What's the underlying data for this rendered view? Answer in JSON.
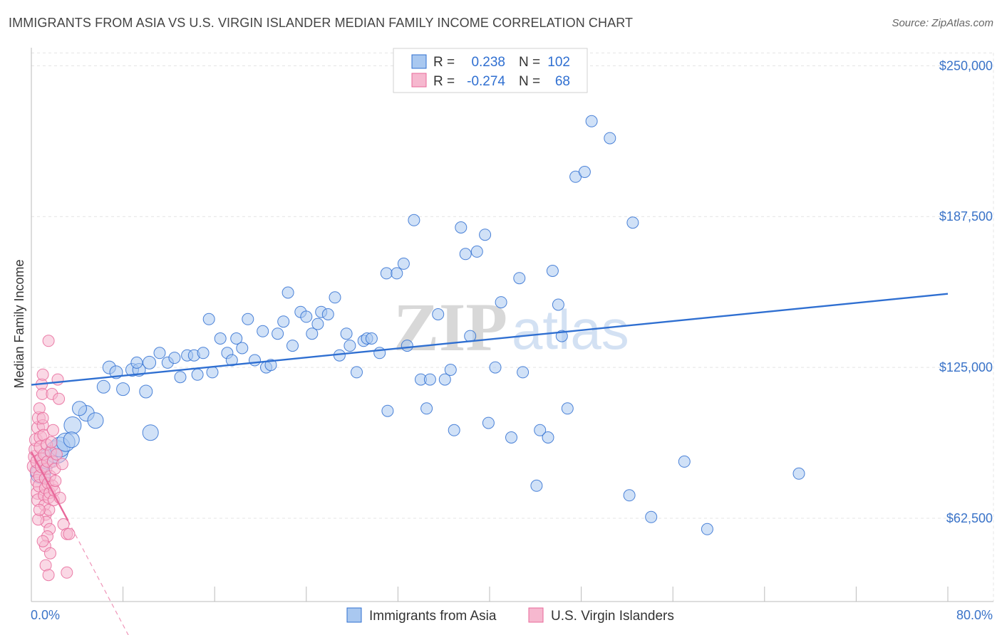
{
  "title": "IMMIGRANTS FROM ASIA VS U.S. VIRGIN ISLANDER MEDIAN FAMILY INCOME CORRELATION CHART",
  "source": "Source: ZipAtlas.com",
  "watermark": {
    "zip": "ZIP",
    "atlas": "atlas"
  },
  "colors": {
    "blue": "#2f6fd1",
    "blue_fill": "#a9c8f0",
    "pink": "#e8689a",
    "pink_fill": "#f6b8cf"
  },
  "legend": {
    "r_label": "R =",
    "n_label": "N =",
    "series": [
      {
        "name": "Immigrants from Asia",
        "r": "0.238",
        "n": "102"
      },
      {
        "name": "U.S. Virgin Islanders",
        "r": "-0.274",
        "n": "68"
      }
    ]
  },
  "chart_data": {
    "type": "scatter",
    "title": "IMMIGRANTS FROM ASIA VS U.S. VIRGIN ISLANDER MEDIAN FAMILY INCOME CORRELATION CHART",
    "xlabel": "",
    "ylabel": "Median Family Income",
    "xlim": [
      0,
      80
    ],
    "ylim": [
      28000,
      256000
    ],
    "x_tick_labels": [
      "0.0%",
      "80.0%"
    ],
    "y_ticks": [
      62500,
      125000,
      187500,
      250000
    ],
    "y_tick_labels": [
      "$62,500",
      "$125,000",
      "$187,500",
      "$250,000"
    ],
    "grid": true,
    "series": [
      {
        "name": "Immigrants from Asia",
        "color": "#2f6fd1",
        "trend": {
          "x": [
            0,
            80
          ],
          "y": [
            117800,
            155500
          ],
          "style": "solid"
        },
        "points": [
          [
            0.8,
            81000,
            14
          ],
          [
            1.4,
            87000,
            14
          ],
          [
            2.2,
            90000,
            16
          ],
          [
            2.5,
            92000,
            14
          ],
          [
            3.0,
            94000,
            13
          ],
          [
            3.6,
            101000,
            12
          ],
          [
            4.8,
            106000,
            11
          ],
          [
            5.6,
            103000,
            11
          ],
          [
            4.2,
            108000,
            10
          ],
          [
            6.3,
            117000,
            9
          ],
          [
            6.8,
            125000,
            9
          ],
          [
            7.4,
            123000,
            9
          ],
          [
            8.0,
            116000,
            9
          ],
          [
            8.8,
            124000,
            9
          ],
          [
            9.4,
            124000,
            9
          ],
          [
            10.0,
            115000,
            9
          ],
          [
            9.2,
            127000,
            8
          ],
          [
            10.3,
            127000,
            9
          ],
          [
            11.2,
            131000,
            8
          ],
          [
            11.9,
            127000,
            8
          ],
          [
            12.5,
            129000,
            8
          ],
          [
            13.0,
            121000,
            8
          ],
          [
            13.6,
            130000,
            8
          ],
          [
            14.2,
            130000,
            8
          ],
          [
            14.5,
            122000,
            8
          ],
          [
            15.0,
            131000,
            8
          ],
          [
            15.5,
            145000,
            8
          ],
          [
            15.8,
            123000,
            8
          ],
          [
            16.5,
            137000,
            8
          ],
          [
            17.1,
            131000,
            8
          ],
          [
            17.5,
            128000,
            8
          ],
          [
            17.9,
            137000,
            8
          ],
          [
            18.4,
            133000,
            8
          ],
          [
            18.9,
            145000,
            8
          ],
          [
            19.5,
            128000,
            8
          ],
          [
            20.2,
            140000,
            8
          ],
          [
            20.5,
            125000,
            8
          ],
          [
            20.9,
            126000,
            8
          ],
          [
            21.5,
            139000,
            8
          ],
          [
            22.0,
            144000,
            8
          ],
          [
            22.4,
            156000,
            8
          ],
          [
            22.8,
            134000,
            8
          ],
          [
            23.5,
            148000,
            8
          ],
          [
            24.0,
            146000,
            8
          ],
          [
            24.5,
            139000,
            8
          ],
          [
            25.0,
            143000,
            8
          ],
          [
            25.3,
            148000,
            8
          ],
          [
            25.9,
            147000,
            8
          ],
          [
            26.5,
            154000,
            8
          ],
          [
            26.9,
            130000,
            8
          ],
          [
            27.5,
            139000,
            8
          ],
          [
            27.8,
            134000,
            8
          ],
          [
            28.4,
            123000,
            8
          ],
          [
            29.0,
            136000,
            8
          ],
          [
            29.3,
            137000,
            8
          ],
          [
            29.7,
            137000,
            8
          ],
          [
            30.4,
            131000,
            8
          ],
          [
            31.1,
            107000,
            8
          ],
          [
            31.0,
            164000,
            8
          ],
          [
            31.9,
            164000,
            8
          ],
          [
            32.5,
            168000,
            8
          ],
          [
            32.8,
            134000,
            8
          ],
          [
            33.4,
            186000,
            8
          ],
          [
            34.0,
            120000,
            8
          ],
          [
            34.5,
            108000,
            8
          ],
          [
            34.8,
            120000,
            8
          ],
          [
            35.5,
            147000,
            8
          ],
          [
            36.1,
            120000,
            8
          ],
          [
            36.6,
            124000,
            8
          ],
          [
            36.9,
            99000,
            8
          ],
          [
            37.5,
            183000,
            8
          ],
          [
            37.9,
            172000,
            8
          ],
          [
            38.3,
            138000,
            8
          ],
          [
            38.9,
            173000,
            8
          ],
          [
            39.6,
            180000,
            8
          ],
          [
            39.9,
            102000,
            8
          ],
          [
            40.5,
            125000,
            8
          ],
          [
            41.0,
            152000,
            8
          ],
          [
            41.9,
            96000,
            8
          ],
          [
            42.6,
            162000,
            8
          ],
          [
            42.9,
            123000,
            8
          ],
          [
            44.1,
            76000,
            8
          ],
          [
            44.4,
            99000,
            8
          ],
          [
            45.1,
            96000,
            8
          ],
          [
            45.5,
            165000,
            8
          ],
          [
            46.0,
            151000,
            8
          ],
          [
            46.3,
            138000,
            8
          ],
          [
            46.8,
            108000,
            8
          ],
          [
            47.5,
            204000,
            8
          ],
          [
            48.3,
            206000,
            8
          ],
          [
            48.9,
            227000,
            8
          ],
          [
            50.5,
            220000,
            8
          ],
          [
            52.2,
            72000,
            8
          ],
          [
            52.5,
            185000,
            8
          ],
          [
            54.1,
            63000,
            8
          ],
          [
            57.0,
            86000,
            8
          ],
          [
            59.0,
            58000,
            8
          ],
          [
            67.0,
            81000,
            8
          ],
          [
            10.4,
            98000,
            11
          ],
          [
            3.5,
            95000,
            11
          ]
        ]
      },
      {
        "name": "U.S. Virgin Islanders",
        "color": "#e8689a",
        "trend": {
          "x": [
            0,
            3.2
          ],
          "y": [
            90000,
            61500
          ],
          "style": "solid",
          "extension": {
            "x": [
              3.2,
              9.7
            ],
            "y": [
              61500,
              3000
            ],
            "style": "dashed"
          }
        },
        "points": [
          [
            0.2,
            84000,
            9
          ],
          [
            0.3,
            88000,
            9
          ],
          [
            0.35,
            91000,
            9
          ],
          [
            0.4,
            95000,
            9
          ],
          [
            0.45,
            82000,
            9
          ],
          [
            0.5,
            86000,
            9
          ],
          [
            0.5,
            78000,
            9
          ],
          [
            0.55,
            73000,
            9
          ],
          [
            0.6,
            70000,
            9
          ],
          [
            0.6,
            100000,
            9
          ],
          [
            0.65,
            104000,
            9
          ],
          [
            0.7,
            108000,
            8
          ],
          [
            0.7,
            76000,
            9
          ],
          [
            0.75,
            80000,
            9
          ],
          [
            0.8,
            96000,
            9
          ],
          [
            0.8,
            92000,
            9
          ],
          [
            0.85,
            87000,
            9
          ],
          [
            0.9,
            84000,
            9
          ],
          [
            0.9,
            118000,
            8
          ],
          [
            0.95,
            114000,
            8
          ],
          [
            1.0,
            122000,
            8
          ],
          [
            1.0,
            101000,
            8
          ],
          [
            1.05,
            97000,
            8
          ],
          [
            1.1,
            89000,
            8
          ],
          [
            1.1,
            72000,
            8
          ],
          [
            1.15,
            68000,
            8
          ],
          [
            1.2,
            75000,
            8
          ],
          [
            1.2,
            79000,
            8
          ],
          [
            1.25,
            64000,
            8
          ],
          [
            1.3,
            61000,
            8
          ],
          [
            1.3,
            83000,
            8
          ],
          [
            1.35,
            93000,
            8
          ],
          [
            1.4,
            86000,
            8
          ],
          [
            1.45,
            77000,
            8
          ],
          [
            1.5,
            71000,
            8
          ],
          [
            1.55,
            66000,
            8
          ],
          [
            1.6,
            58000,
            8
          ],
          [
            1.6,
            73000,
            8
          ],
          [
            1.65,
            80000,
            8
          ],
          [
            1.7,
            90000,
            8
          ],
          [
            1.75,
            94000,
            8
          ],
          [
            1.8,
            114000,
            8
          ],
          [
            1.85,
            76000,
            8
          ],
          [
            1.9,
            86000,
            8
          ],
          [
            1.95,
            70000,
            8
          ],
          [
            2.0,
            74000,
            8
          ],
          [
            2.05,
            83000,
            8
          ],
          [
            2.1,
            78000,
            8
          ],
          [
            2.2,
            89000,
            8
          ],
          [
            2.3,
            120000,
            8
          ],
          [
            2.4,
            112000,
            8
          ],
          [
            1.5,
            136000,
            8
          ],
          [
            1.4,
            55000,
            8
          ],
          [
            1.2,
            51000,
            8
          ],
          [
            1.0,
            53000,
            8
          ],
          [
            1.25,
            43000,
            8
          ],
          [
            1.5,
            39000,
            8
          ],
          [
            1.65,
            48000,
            8
          ],
          [
            2.8,
            60000,
            8
          ],
          [
            3.1,
            56000,
            8
          ],
          [
            3.3,
            56000,
            8
          ],
          [
            3.1,
            40000,
            8
          ],
          [
            0.6,
            62000,
            8
          ],
          [
            0.7,
            66000,
            8
          ],
          [
            1.9,
            99000,
            8
          ],
          [
            1.0,
            104000,
            8
          ],
          [
            2.7,
            85000,
            8
          ],
          [
            2.5,
            71000,
            8
          ]
        ]
      }
    ]
  }
}
